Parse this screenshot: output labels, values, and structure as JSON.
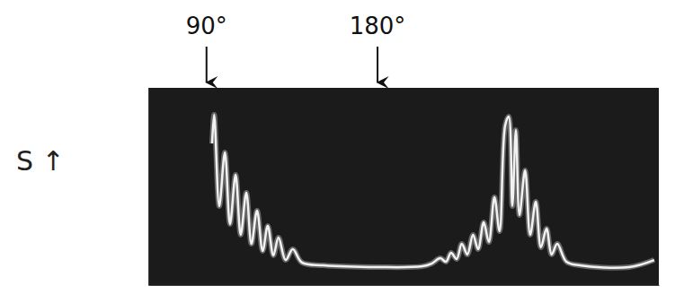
{
  "chart_data": {
    "type": "line",
    "ylabel": "S ↑",
    "x": [
      12.5,
      12.9,
      13.9,
      15.0,
      16.0,
      17.1,
      18.1,
      19.2,
      20.2,
      21.3,
      22.4,
      23.4,
      24.5,
      25.5,
      26.9,
      28.3,
      30.1,
      34.3,
      44.9,
      53.7,
      55.5,
      57.2,
      58.3,
      59.3,
      60.4,
      61.4,
      62.5,
      63.6,
      64.6,
      65.7,
      66.7,
      67.8,
      68.8,
      69.9,
      70.6,
      71.3,
      72.0,
      72.7,
      73.8,
      74.8,
      75.9,
      76.9,
      78.0,
      79.0,
      80.1,
      81.9,
      84.5,
      94.2,
      99.1
    ],
    "values": [
      71.8,
      86.4,
      40.0,
      67.3,
      30.9,
      55.9,
      25.5,
      46.8,
      20.9,
      37.7,
      17.3,
      30.0,
      15.0,
      24.1,
      12.7,
      18.2,
      11.4,
      10.0,
      9.1,
      9.5,
      10.9,
      13.6,
      11.8,
      16.4,
      13.2,
      20.9,
      15.5,
      25.5,
      18.2,
      31.8,
      21.8,
      44.5,
      27.3,
      80.9,
      85.5,
      40.0,
      78.6,
      35.5,
      58.2,
      25.5,
      42.3,
      19.1,
      28.6,
      15.5,
      20.9,
      11.8,
      10.0,
      9.1,
      12.7
    ],
    "xlim": [
      0,
      100
    ],
    "ylim": [
      0,
      100
    ],
    "tick_labels": false,
    "color": "#f2f2f2",
    "annotations": [
      {
        "text": "90°",
        "x": 11.4
      },
      {
        "text": "180°",
        "x": 44.9
      }
    ]
  }
}
